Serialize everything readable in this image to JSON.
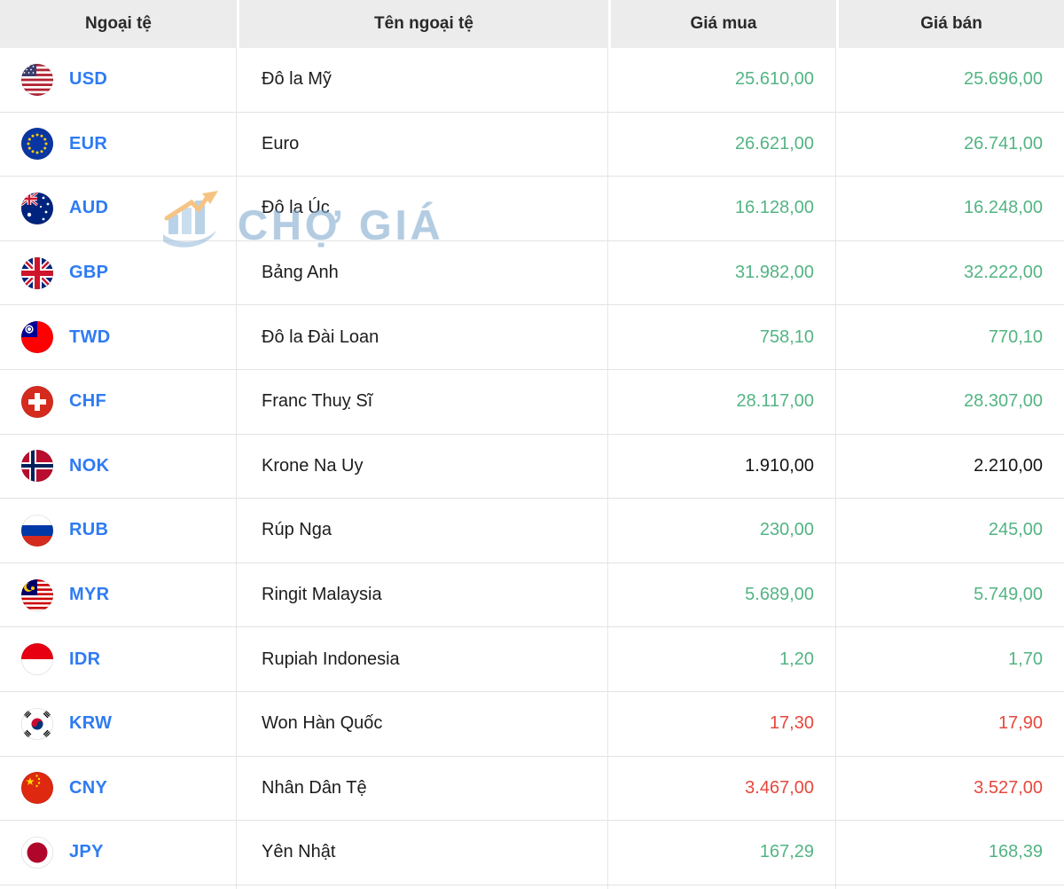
{
  "header": {
    "columns": [
      "Ngoại tệ",
      "Tên ngoại tệ",
      "Giá mua",
      "Giá bán"
    ]
  },
  "watermark": {
    "text": "CHỢ GIÁ",
    "logo": "cho-gia-logo"
  },
  "colors": {
    "up": "#53B483",
    "down": "#E5483C",
    "neutral": "#161616",
    "code": "#2E7BF3"
  },
  "rows": [
    {
      "code": "USD",
      "flag": "flag-usa",
      "name": "Đô la Mỹ",
      "buy": "25.610,00",
      "sell": "25.696,00",
      "trend": "up"
    },
    {
      "code": "EUR",
      "flag": "flag-eu",
      "name": "Euro",
      "buy": "26.621,00",
      "sell": "26.741,00",
      "trend": "up"
    },
    {
      "code": "AUD",
      "flag": "flag-australia",
      "name": "Đô la Úc",
      "buy": "16.128,00",
      "sell": "16.248,00",
      "trend": "up"
    },
    {
      "code": "GBP",
      "flag": "flag-uk",
      "name": "Bảng Anh",
      "buy": "31.982,00",
      "sell": "32.222,00",
      "trend": "up"
    },
    {
      "code": "TWD",
      "flag": "flag-taiwan",
      "name": "Đô la Đài Loan",
      "buy": "758,10",
      "sell": "770,10",
      "trend": "up"
    },
    {
      "code": "CHF",
      "flag": "flag-switzerland",
      "name": "Franc Thuỵ Sĩ",
      "buy": "28.117,00",
      "sell": "28.307,00",
      "trend": "up"
    },
    {
      "code": "NOK",
      "flag": "flag-norway",
      "name": "Krone Na Uy",
      "buy": "1.910,00",
      "sell": "2.210,00",
      "trend": "neutral"
    },
    {
      "code": "RUB",
      "flag": "flag-russia",
      "name": "Rúp Nga",
      "buy": "230,00",
      "sell": "245,00",
      "trend": "up"
    },
    {
      "code": "MYR",
      "flag": "flag-malaysia",
      "name": "Ringit Malaysia",
      "buy": "5.689,00",
      "sell": "5.749,00",
      "trend": "up"
    },
    {
      "code": "IDR",
      "flag": "flag-indonesia",
      "name": "Rupiah Indonesia",
      "buy": "1,20",
      "sell": "1,70",
      "trend": "up"
    },
    {
      "code": "KRW",
      "flag": "flag-south-korea",
      "name": "Won Hàn Quốc",
      "buy": "17,30",
      "sell": "17,90",
      "trend": "down"
    },
    {
      "code": "CNY",
      "flag": "flag-china",
      "name": "Nhân Dân Tệ",
      "buy": "3.467,00",
      "sell": "3.527,00",
      "trend": "down"
    },
    {
      "code": "JPY",
      "flag": "flag-japan",
      "name": "Yên Nhật",
      "buy": "167,29",
      "sell": "168,39",
      "trend": "up"
    }
  ]
}
